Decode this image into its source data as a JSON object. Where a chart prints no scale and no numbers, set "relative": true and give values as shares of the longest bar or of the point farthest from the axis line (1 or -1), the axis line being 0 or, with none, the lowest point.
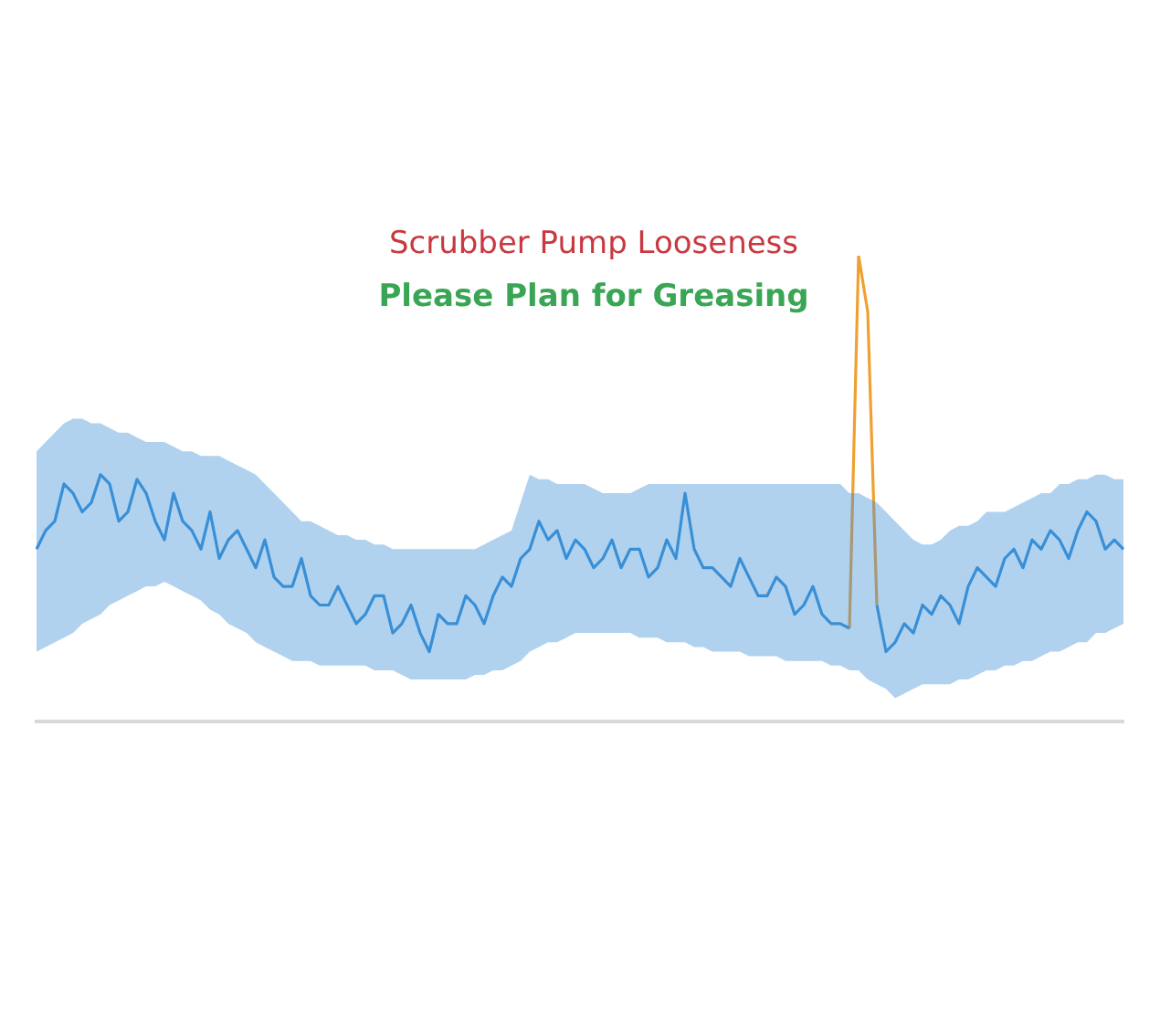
{
  "chart_data": {
    "type": "line",
    "relative": true,
    "legend": false,
    "marker": "none",
    "annotations": [
      "Scrubber Pump Looseness",
      "Please Plan for Greasing"
    ],
    "categories": [
      null,
      null,
      null,
      null,
      null,
      null,
      null,
      null,
      null,
      null,
      null,
      null,
      null,
      null,
      null,
      null,
      null,
      null,
      null,
      null,
      null,
      null,
      null,
      null,
      null,
      null,
      null,
      null,
      null,
      null,
      null,
      null,
      null,
      null,
      null,
      null,
      null,
      null,
      null,
      null,
      null,
      null,
      null,
      null,
      null,
      null,
      null,
      null,
      null,
      null,
      null,
      null,
      null,
      null,
      null,
      null,
      null,
      null,
      null,
      null,
      null,
      null,
      null,
      null,
      null,
      null,
      null,
      null,
      null,
      null,
      null,
      null,
      null,
      null,
      null,
      null,
      null,
      null,
      null,
      null,
      null,
      null,
      null,
      null,
      null,
      null,
      null,
      null,
      null,
      null,
      null,
      null,
      null,
      null,
      null,
      null,
      null,
      null,
      null,
      null,
      null,
      null,
      null,
      null,
      null,
      null,
      null,
      null,
      null,
      null,
      null,
      null,
      null,
      null,
      null,
      null,
      null,
      null,
      null,
      null
    ],
    "series": [
      {
        "color": "#3a8fd6",
        "values": [
          0.37,
          0.41,
          0.43,
          0.51,
          0.49,
          0.45,
          0.47,
          0.53,
          0.51,
          0.43,
          0.45,
          0.52,
          0.49,
          0.43,
          0.39,
          0.49,
          0.43,
          0.41,
          0.37,
          0.45,
          0.35,
          0.39,
          0.41,
          0.37,
          0.33,
          0.39,
          0.31,
          0.29,
          0.29,
          0.35,
          0.27,
          0.25,
          0.25,
          0.29,
          0.25,
          0.21,
          0.23,
          0.27,
          0.27,
          0.19,
          0.21,
          0.25,
          0.19,
          0.15,
          0.23,
          0.21,
          0.21,
          0.27,
          0.25,
          0.21,
          0.27,
          0.31,
          0.29,
          0.35,
          0.37,
          0.43,
          0.39,
          0.41,
          0.35,
          0.39,
          0.37,
          0.33,
          0.35,
          0.39,
          0.33,
          0.37,
          0.37,
          0.31,
          0.33,
          0.39,
          0.35,
          0.49,
          0.37,
          0.33,
          0.33,
          0.31,
          0.29,
          0.35,
          0.31,
          0.27,
          0.27,
          0.31,
          0.29,
          0.23,
          0.25,
          0.29,
          0.23,
          0.21,
          0.21,
          0.2,
          null,
          null,
          0.25,
          0.15,
          0.17,
          0.21,
          0.19,
          0.25,
          0.23,
          0.27,
          0.25,
          0.21,
          0.29,
          0.33,
          0.31,
          0.29,
          0.35,
          0.37,
          0.33,
          0.39,
          0.37,
          0.41,
          0.39,
          0.35,
          0.41,
          0.45,
          0.43,
          0.37,
          0.39,
          0.37
        ],
        "upper": [
          0.58,
          0.6,
          0.62,
          0.64,
          0.65,
          0.65,
          0.64,
          0.64,
          0.63,
          0.62,
          0.62,
          0.61,
          0.6,
          0.6,
          0.6,
          0.59,
          0.58,
          0.58,
          0.57,
          0.57,
          0.57,
          0.56,
          0.55,
          0.54,
          0.53,
          0.51,
          0.49,
          0.47,
          0.45,
          0.43,
          0.43,
          0.42,
          0.41,
          0.4,
          0.4,
          0.39,
          0.39,
          0.38,
          0.38,
          0.37,
          0.37,
          0.37,
          0.37,
          0.37,
          0.37,
          0.37,
          0.37,
          0.37,
          0.37,
          0.38,
          0.39,
          0.4,
          0.41,
          0.47,
          0.53,
          0.52,
          0.52,
          0.51,
          0.51,
          0.51,
          0.51,
          0.5,
          0.49,
          0.49,
          0.49,
          0.49,
          0.5,
          0.51,
          0.51,
          0.51,
          0.51,
          0.51,
          0.51,
          0.51,
          0.51,
          0.51,
          0.51,
          0.51,
          0.51,
          0.51,
          0.51,
          0.51,
          0.51,
          0.51,
          0.51,
          0.51,
          0.51,
          0.51,
          0.51,
          0.49,
          0.49,
          0.48,
          0.47,
          0.45,
          0.43,
          0.41,
          0.39,
          0.38,
          0.38,
          0.39,
          0.41,
          0.42,
          0.42,
          0.43,
          0.45,
          0.45,
          0.45,
          0.46,
          0.47,
          0.48,
          0.49,
          0.49,
          0.51,
          0.51,
          0.52,
          0.52,
          0.53,
          0.53,
          0.52,
          0.52
        ],
        "lower": [
          0.15,
          0.16,
          0.17,
          0.18,
          0.19,
          0.21,
          0.22,
          0.23,
          0.25,
          0.26,
          0.27,
          0.28,
          0.29,
          0.29,
          0.3,
          0.29,
          0.28,
          0.27,
          0.26,
          0.24,
          0.23,
          0.21,
          0.2,
          0.19,
          0.17,
          0.16,
          0.15,
          0.14,
          0.13,
          0.13,
          0.13,
          0.12,
          0.12,
          0.12,
          0.12,
          0.12,
          0.12,
          0.11,
          0.11,
          0.11,
          0.1,
          0.09,
          0.09,
          0.09,
          0.09,
          0.09,
          0.09,
          0.09,
          0.1,
          0.1,
          0.11,
          0.11,
          0.12,
          0.13,
          0.15,
          0.16,
          0.17,
          0.17,
          0.18,
          0.19,
          0.19,
          0.19,
          0.19,
          0.19,
          0.19,
          0.19,
          0.18,
          0.18,
          0.18,
          0.17,
          0.17,
          0.17,
          0.16,
          0.16,
          0.15,
          0.15,
          0.15,
          0.15,
          0.14,
          0.14,
          0.14,
          0.14,
          0.13,
          0.13,
          0.13,
          0.13,
          0.13,
          0.12,
          0.12,
          0.11,
          0.11,
          0.09,
          0.08,
          0.07,
          0.05,
          0.06,
          0.07,
          0.08,
          0.08,
          0.08,
          0.08,
          0.09,
          0.09,
          0.1,
          0.11,
          0.11,
          0.12,
          0.12,
          0.13,
          0.13,
          0.14,
          0.15,
          0.15,
          0.16,
          0.17,
          0.17,
          0.19,
          0.19,
          0.2,
          0.21
        ]
      },
      {
        "color": "#f0a030",
        "values": [
          null,
          null,
          null,
          null,
          null,
          null,
          null,
          null,
          null,
          null,
          null,
          null,
          null,
          null,
          null,
          null,
          null,
          null,
          null,
          null,
          null,
          null,
          null,
          null,
          null,
          null,
          null,
          null,
          null,
          null,
          null,
          null,
          null,
          null,
          null,
          null,
          null,
          null,
          null,
          null,
          null,
          null,
          null,
          null,
          null,
          null,
          null,
          null,
          null,
          null,
          null,
          null,
          null,
          null,
          null,
          null,
          null,
          null,
          null,
          null,
          null,
          null,
          null,
          null,
          null,
          null,
          null,
          null,
          null,
          null,
          null,
          null,
          null,
          null,
          null,
          null,
          null,
          null,
          null,
          null,
          null,
          null,
          null,
          null,
          null,
          null,
          null,
          null,
          null,
          0.2,
          1,
          0.88,
          0.25,
          null,
          null,
          null,
          null,
          null,
          null,
          null,
          null,
          null,
          null,
          null,
          null,
          null,
          null,
          null,
          null,
          null,
          null,
          null,
          null,
          null,
          null,
          null,
          null,
          null,
          null,
          null
        ]
      }
    ]
  }
}
